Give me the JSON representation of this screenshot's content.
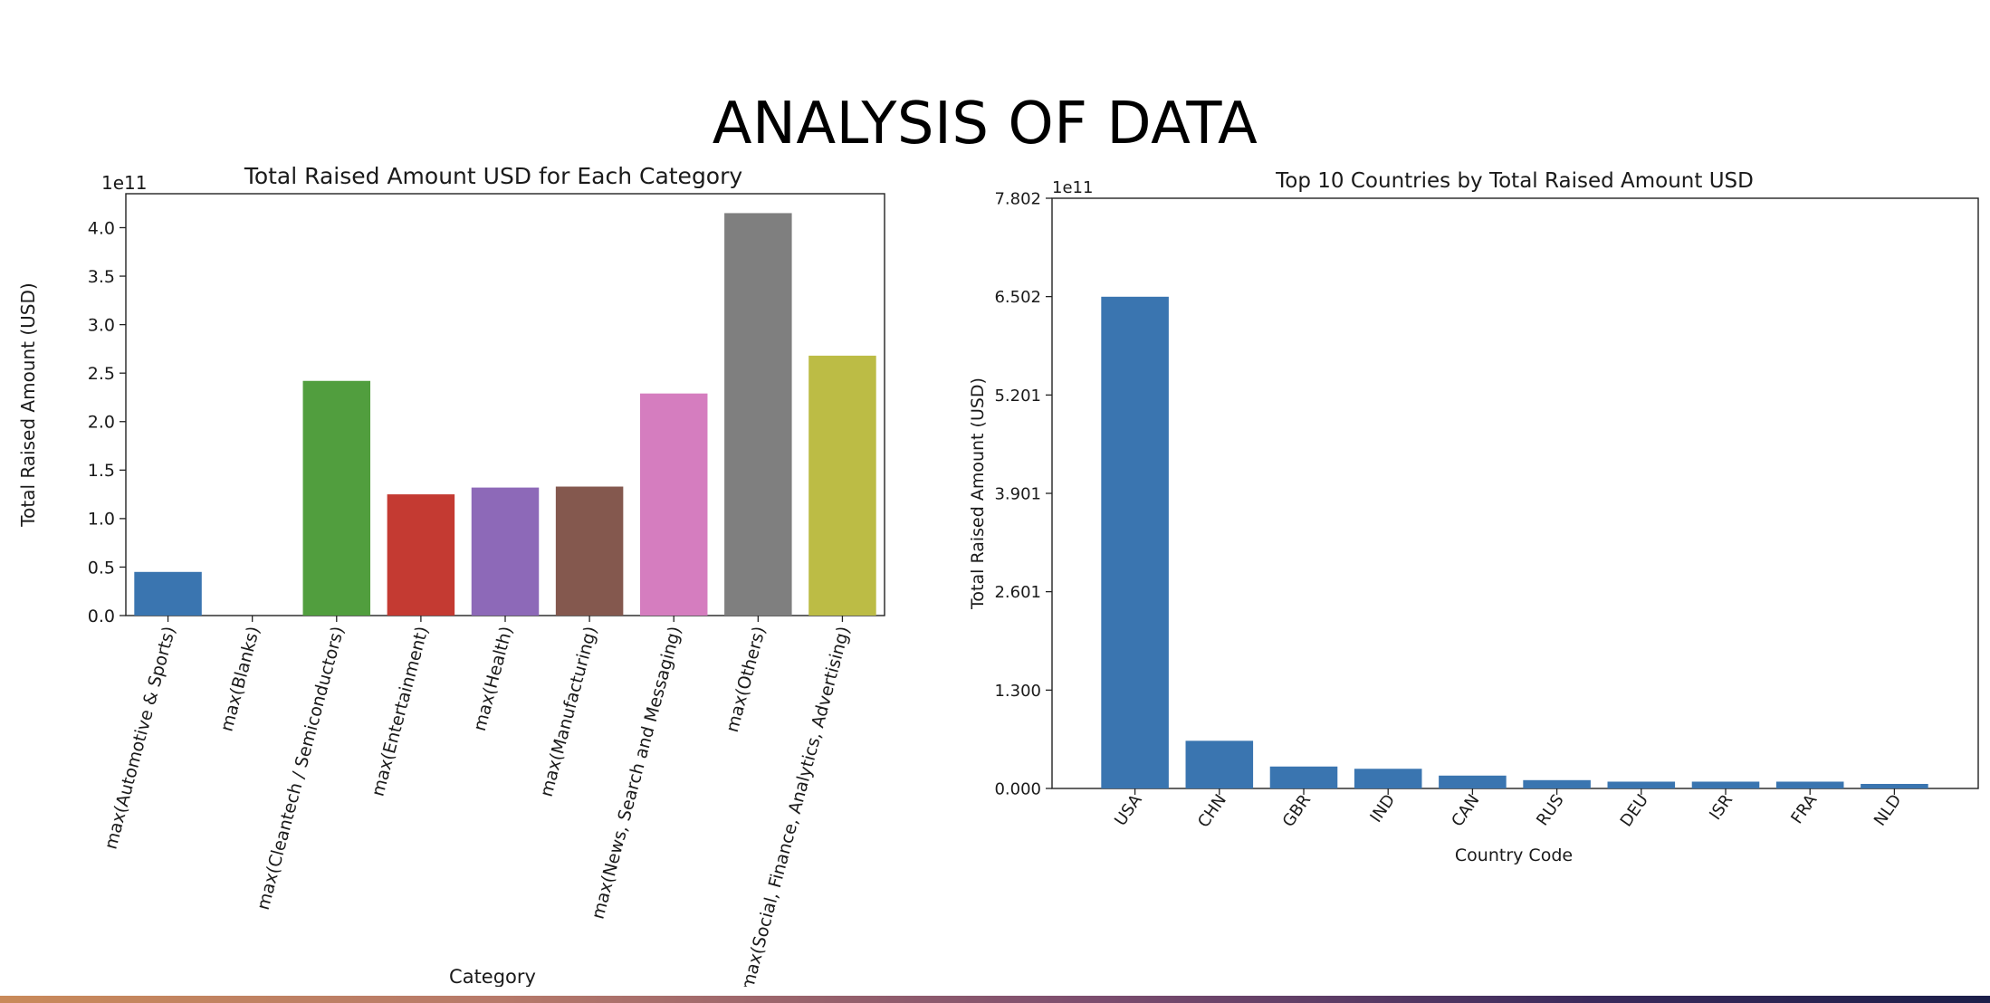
{
  "slide": {
    "title": "ANALYSIS OF DATA"
  },
  "chart_data": [
    {
      "type": "bar",
      "title": "Total Raised Amount USD for Each Category",
      "xlabel": "Category",
      "ylabel": "Total Raised Amount (USD)",
      "y_multiplier": "1e11",
      "categories": [
        "max(Automotive & Sports)",
        "max(Blanks)",
        "max(Cleantech / Semiconductors)",
        "max(Entertainment)",
        "max(Health)",
        "max(Manufacturing)",
        "max(News, Search and Messaging)",
        "max(Others)",
        "max(Social, Finance, Analytics, Advertising)"
      ],
      "values": [
        0.45,
        0,
        2.42,
        1.25,
        1.32,
        1.33,
        2.29,
        4.15,
        2.68
      ],
      "colors": [
        "#3a75b0",
        "#f08a24",
        "#519e3e",
        "#c43a32",
        "#8d69b8",
        "#84584e",
        "#d57dbf",
        "#7f7f7f",
        "#bcbc45"
      ],
      "yticks": [
        "0.0",
        "0.5",
        "1.0",
        "1.5",
        "2.0",
        "2.5",
        "3.0",
        "3.5",
        "4.0"
      ],
      "ylim": [
        0,
        4.35
      ],
      "grid": false
    },
    {
      "type": "bar",
      "title": "Top 10 Countries by Total Raised Amount USD",
      "xlabel": "Country Code",
      "ylabel": "Total Raised Amount (USD)",
      "y_multiplier": "1e11",
      "categories": [
        "USA",
        "CHN",
        "GBR",
        "IND",
        "CAN",
        "RUS",
        "DEU",
        "ISR",
        "FRA",
        "NLD"
      ],
      "values": [
        6.5,
        0.63,
        0.29,
        0.26,
        0.17,
        0.11,
        0.09,
        0.09,
        0.09,
        0.06
      ],
      "color": "#3a75b0",
      "yticks": [
        "0.000",
        "1.300",
        "2.601",
        "3.901",
        "5.201",
        "6.502",
        "7.802"
      ],
      "ylim": [
        0,
        7.802
      ],
      "grid": false
    }
  ]
}
